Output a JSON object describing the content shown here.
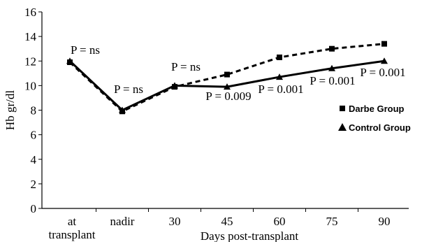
{
  "chart_data": {
    "type": "line",
    "title": "",
    "xlabel": "Days post-transplant",
    "ylabel": "Hb gr/dl",
    "ylim": [
      0,
      16
    ],
    "yticks": [
      0,
      2,
      4,
      6,
      8,
      10,
      12,
      14,
      16
    ],
    "categories": [
      "at\ntransplant",
      "nadir",
      "30",
      "45",
      "60",
      "75",
      "90"
    ],
    "grid": false,
    "legend_position": "right",
    "series": [
      {
        "name": "Darbe Group",
        "line_style": "dashed",
        "marker": "square",
        "values": [
          11.9,
          7.9,
          9.9,
          10.9,
          12.3,
          13.0,
          13.4
        ]
      },
      {
        "name": "Control Group",
        "line_style": "solid",
        "marker": "triangle",
        "values": [
          12.0,
          8.0,
          10.0,
          9.9,
          10.7,
          11.4,
          12.0
        ]
      }
    ],
    "annotations": [
      {
        "text": "P = ns",
        "category_index": 0
      },
      {
        "text": "P = ns",
        "category_index": 1
      },
      {
        "text": "P = ns",
        "category_index": 2
      },
      {
        "text": "P = 0.009",
        "category_index": 3
      },
      {
        "text": "P = 0.001",
        "category_index": 4
      },
      {
        "text": "P = 0.001",
        "category_index": 5
      },
      {
        "text": "P = 0.001",
        "category_index": 6
      }
    ],
    "colors": {
      "line": "#000000",
      "background": "#ffffff"
    }
  }
}
